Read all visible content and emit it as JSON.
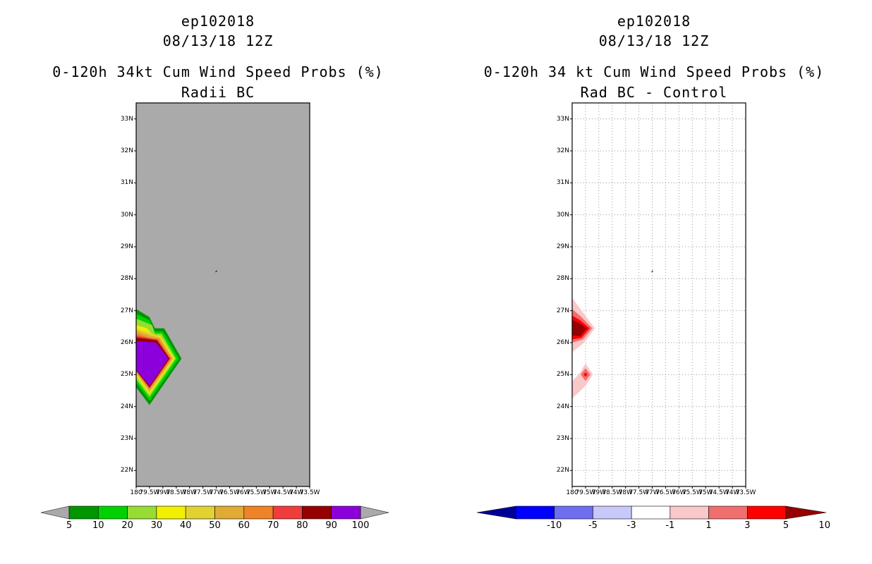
{
  "panels": [
    {
      "storm_id": "ep102018",
      "datetime": "08/13/18 12Z",
      "title": "0-120h 34kt Cum Wind Speed Probs (%)",
      "subtitle": "Radii BC"
    },
    {
      "storm_id": "ep102018",
      "datetime": "08/13/18 12Z",
      "title": "0-120h 34 kt Cum Wind Speed Probs (%)",
      "subtitle": "Rad BC - Control"
    }
  ],
  "chart_data": [
    {
      "type": "heatmap",
      "title": "0-120h 34kt Cum Wind Speed Probs (%)",
      "subtitle": "Radii BC",
      "y_ticks": [
        "33N",
        "32N",
        "31N",
        "30N",
        "29N",
        "28N",
        "27N",
        "26N",
        "25N",
        "24N",
        "23N",
        "22N"
      ],
      "y_values": [
        33,
        32,
        31,
        30,
        29,
        28,
        27,
        26,
        25,
        24,
        23,
        22
      ],
      "x_ticks": [
        "180",
        "79.5W",
        "79W",
        "78.5W",
        "78W",
        "77.5W",
        "77W",
        "76.5W",
        "76W",
        "75.5W",
        "75W",
        "74.5W",
        "74W",
        "73.5W"
      ],
      "xlim": [
        -80.0,
        -73.5
      ],
      "ylim": [
        21.5,
        33.5
      ],
      "background": "#aaaaaa",
      "colorbar": {
        "levels": [
          "5",
          "10",
          "20",
          "30",
          "40",
          "50",
          "60",
          "70",
          "80",
          "90",
          "100"
        ],
        "colors": [
          "#009600",
          "#00d200",
          "#96dc32",
          "#f0f000",
          "#e1d232",
          "#e1aa32",
          "#f08228",
          "#f03c3c",
          "#960000",
          "#8c00dc"
        ]
      },
      "filled_contours": [
        {
          "level": 5,
          "color": "#009600",
          "polygon": [
            [
              -80,
              27.05
            ],
            [
              -79.5,
              26.8
            ],
            [
              -79.3,
              26.45
            ],
            [
              -78.95,
              26.45
            ],
            [
              -78.3,
              25.5
            ],
            [
              -79.5,
              24.05
            ],
            [
              -80,
              24.6
            ]
          ]
        },
        {
          "level": 10,
          "color": "#00d200",
          "polygon": [
            [
              -80,
              26.9
            ],
            [
              -79.5,
              26.7
            ],
            [
              -79.3,
              26.35
            ],
            [
              -79.0,
              26.35
            ],
            [
              -78.4,
              25.5
            ],
            [
              -79.5,
              24.18
            ],
            [
              -80,
              24.75
            ]
          ]
        },
        {
          "level": 20,
          "color": "#96dc32",
          "polygon": [
            [
              -80,
              26.75
            ],
            [
              -79.4,
              26.55
            ],
            [
              -79.3,
              26.28
            ],
            [
              -79.05,
              26.28
            ],
            [
              -78.5,
              25.5
            ],
            [
              -79.5,
              24.3
            ],
            [
              -80,
              24.85
            ]
          ]
        },
        {
          "level": 30,
          "color": "#f0f000",
          "polygon": [
            [
              -80,
              26.55
            ],
            [
              -79.6,
              26.45
            ],
            [
              -79.35,
              26.22
            ],
            [
              -79.1,
              26.22
            ],
            [
              -78.56,
              25.5
            ],
            [
              -79.5,
              24.38
            ],
            [
              -80,
              24.95
            ]
          ]
        },
        {
          "level": 40,
          "color": "#e1d232",
          "polygon": [
            [
              -80,
              26.45
            ],
            [
              -79.4,
              26.28
            ],
            [
              -79.1,
              26.18
            ],
            [
              -78.6,
              25.5
            ],
            [
              -79.5,
              24.42
            ],
            [
              -80,
              25.0
            ]
          ]
        },
        {
          "level": 50,
          "color": "#e1aa32",
          "polygon": [
            [
              -80,
              26.38
            ],
            [
              -79.4,
              26.2
            ],
            [
              -79.12,
              26.15
            ],
            [
              -78.64,
              25.5
            ],
            [
              -79.5,
              24.48
            ],
            [
              -80,
              25.05
            ]
          ]
        },
        {
          "level": 60,
          "color": "#f08228",
          "polygon": [
            [
              -80,
              26.3
            ],
            [
              -79.5,
              26.15
            ],
            [
              -79.15,
              26.12
            ],
            [
              -78.68,
              25.5
            ],
            [
              -79.5,
              24.53
            ],
            [
              -80,
              25.1
            ]
          ]
        },
        {
          "level": 70,
          "color": "#f03c3c",
          "polygon": [
            [
              -80,
              26.22
            ],
            [
              -79.2,
              26.1
            ],
            [
              -78.72,
              25.5
            ],
            [
              -79.5,
              24.57
            ],
            [
              -80,
              25.15
            ]
          ]
        },
        {
          "level": 80,
          "color": "#960000",
          "polygon": [
            [
              -80,
              26.16
            ],
            [
              -79.22,
              26.07
            ],
            [
              -78.75,
              25.5
            ],
            [
              -79.5,
              24.6
            ],
            [
              -80,
              25.12
            ]
          ]
        },
        {
          "level": 90,
          "color": "#8c00dc",
          "polygon": [
            [
              -80,
              26.05
            ],
            [
              -79.25,
              26.0
            ],
            [
              -78.8,
              25.5
            ],
            [
              -79.5,
              24.65
            ],
            [
              -80,
              25.15
            ]
          ]
        }
      ]
    },
    {
      "type": "heatmap",
      "title": "0-120h 34 kt Cum Wind Speed Probs (%)",
      "subtitle": "Rad BC - Control",
      "y_ticks": [
        "33N",
        "32N",
        "31N",
        "30N",
        "29N",
        "28N",
        "27N",
        "26N",
        "25N",
        "24N",
        "23N",
        "22N"
      ],
      "y_values": [
        33,
        32,
        31,
        30,
        29,
        28,
        27,
        26,
        25,
        24,
        23,
        22
      ],
      "x_ticks": [
        "180",
        "79.5W",
        "79W",
        "78.5W",
        "78W",
        "77.5W",
        "77W",
        "76.5W",
        "76W",
        "75.5W",
        "75W",
        "74.5W",
        "74W",
        "73.5W"
      ],
      "xlim": [
        -80.0,
        -73.5
      ],
      "ylim": [
        21.5,
        33.5
      ],
      "background": "#ffffff",
      "grid": true,
      "colorbar": {
        "levels": [
          "-10",
          "-5",
          "-3",
          "-1",
          "1",
          "3",
          "5",
          "10"
        ],
        "colors": [
          "#000096",
          "#0000ff",
          "#6e6ef0",
          "#c8c8fa",
          "#ffffff",
          "#fac8c8",
          "#f06e6e",
          "#ff0000",
          "#960000"
        ]
      },
      "filled_contours": [
        {
          "level": 1,
          "color": "#fac8c8",
          "polygon": [
            [
              -80,
              27.4
            ],
            [
              -79.6,
              26.95
            ],
            [
              -79.15,
              26.45
            ],
            [
              -79.55,
              26.0
            ],
            [
              -80,
              25.7
            ]
          ]
        },
        {
          "level": 3,
          "color": "#f06e6e",
          "polygon": [
            [
              -80,
              27.05
            ],
            [
              -79.65,
              26.8
            ],
            [
              -79.25,
              26.45
            ],
            [
              -79.6,
              26.1
            ],
            [
              -80,
              26.0
            ]
          ]
        },
        {
          "level": 5,
          "color": "#ff0000",
          "polygon": [
            [
              -80,
              26.85
            ],
            [
              -79.7,
              26.7
            ],
            [
              -79.35,
              26.45
            ],
            [
              -79.65,
              26.15
            ],
            [
              -80,
              26.1
            ]
          ]
        },
        {
          "level": 10,
          "color": "#960000",
          "polygon": [
            [
              -80,
              26.72
            ],
            [
              -79.72,
              26.6
            ],
            [
              -79.45,
              26.45
            ],
            [
              -79.7,
              26.2
            ],
            [
              -80,
              26.22
            ]
          ]
        },
        {
          "level": 1,
          "color": "#fac8c8",
          "polygon": [
            [
              -80,
              24.8
            ],
            [
              -79.75,
              25.0
            ],
            [
              -79.5,
              25.35
            ],
            [
              -79.22,
              25.0
            ],
            [
              -79.5,
              24.65
            ],
            [
              -80,
              24.25
            ]
          ]
        },
        {
          "level": 3,
          "color": "#f06e6e",
          "polygon": [
            [
              -79.5,
              25.2
            ],
            [
              -79.32,
              25.0
            ],
            [
              -79.5,
              24.8
            ],
            [
              -79.68,
              25.0
            ]
          ]
        },
        {
          "level": 5,
          "color": "#ff0000",
          "polygon": [
            [
              -79.5,
              25.07
            ],
            [
              -79.43,
              25.0
            ],
            [
              -79.5,
              24.93
            ],
            [
              -79.57,
              25.0
            ]
          ]
        }
      ]
    }
  ]
}
